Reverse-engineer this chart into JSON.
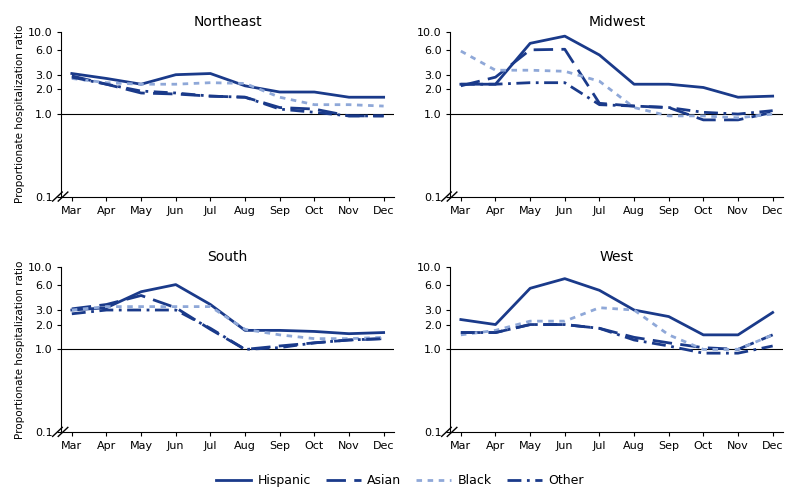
{
  "months": [
    "Mar",
    "Apr",
    "May",
    "Jun",
    "Jul",
    "Aug",
    "Sep",
    "Oct",
    "Nov",
    "Dec"
  ],
  "regions": [
    "Northeast",
    "Midwest",
    "South",
    "West"
  ],
  "series": {
    "Northeast": {
      "Hispanic": [
        3.1,
        2.7,
        2.3,
        3.0,
        3.1,
        2.2,
        1.85,
        1.85,
        1.6,
        1.6
      ],
      "Asian": [
        2.9,
        2.3,
        1.8,
        1.75,
        1.65,
        1.6,
        1.2,
        1.15,
        0.95,
        0.95
      ],
      "Black": [
        2.7,
        2.4,
        2.3,
        2.3,
        2.4,
        2.35,
        1.6,
        1.3,
        1.3,
        1.25
      ],
      "Other": [
        2.8,
        2.3,
        1.9,
        1.8,
        1.65,
        1.6,
        1.15,
        1.05,
        0.95,
        0.95
      ]
    },
    "Midwest": {
      "Hispanic": [
        2.3,
        2.3,
        7.2,
        8.8,
        5.2,
        2.3,
        2.3,
        2.1,
        1.6,
        1.65
      ],
      "Asian": [
        2.2,
        2.8,
        6.0,
        6.1,
        1.35,
        1.25,
        1.2,
        0.85,
        0.85,
        1.05
      ],
      "Black": [
        5.8,
        3.4,
        3.4,
        3.3,
        2.5,
        1.2,
        0.95,
        0.95,
        0.9,
        1.0
      ],
      "Other": [
        2.3,
        2.3,
        2.4,
        2.4,
        1.3,
        1.25,
        1.2,
        1.05,
        1.0,
        1.1
      ]
    },
    "South": {
      "Hispanic": [
        3.0,
        3.2,
        5.0,
        6.1,
        3.5,
        1.7,
        1.7,
        1.65,
        1.55,
        1.6
      ],
      "Asian": [
        3.1,
        3.5,
        4.5,
        3.2,
        1.75,
        1.0,
        1.1,
        1.2,
        1.3,
        1.35
      ],
      "Black": [
        3.0,
        3.3,
        3.3,
        3.3,
        3.3,
        1.75,
        1.5,
        1.35,
        1.35,
        1.4
      ],
      "Other": [
        2.7,
        3.0,
        3.0,
        3.0,
        1.8,
        1.0,
        1.05,
        1.2,
        1.3,
        1.35
      ]
    },
    "West": {
      "Hispanic": [
        2.3,
        2.0,
        5.5,
        7.2,
        5.2,
        3.0,
        2.5,
        1.5,
        1.5,
        2.8
      ],
      "Asian": [
        1.6,
        1.6,
        2.0,
        2.0,
        1.8,
        1.4,
        1.2,
        1.05,
        1.0,
        1.5
      ],
      "Black": [
        1.5,
        1.7,
        2.2,
        2.2,
        3.2,
        3.0,
        1.5,
        1.0,
        1.0,
        1.5
      ],
      "Other": [
        1.6,
        1.6,
        2.0,
        2.0,
        1.8,
        1.3,
        1.1,
        0.9,
        0.9,
        1.1
      ]
    }
  },
  "colors": {
    "Hispanic": "#1a3a8a",
    "Asian": "#1a3a8a",
    "Black": "#8fa8d8",
    "Other": "#1a3a8a"
  },
  "linewidths": {
    "Hispanic": 2.0,
    "Asian": 2.0,
    "Black": 2.0,
    "Other": 2.0
  },
  "ylabel": "Proportionate hospitalization ratio",
  "yticks": [
    0.1,
    1.0,
    2.0,
    3.0,
    6.0,
    10.0
  ],
  "ytick_labels": [
    "0.1",
    "1.0",
    "2.0",
    "3.0",
    "6.0",
    "10.0"
  ],
  "bg_color": "#FFFFFF",
  "legend_labels": [
    "Hispanic",
    "Asian",
    "Black",
    "Other"
  ],
  "title_fontsize": 10,
  "tick_fontsize": 8,
  "ylabel_fontsize": 7.5
}
